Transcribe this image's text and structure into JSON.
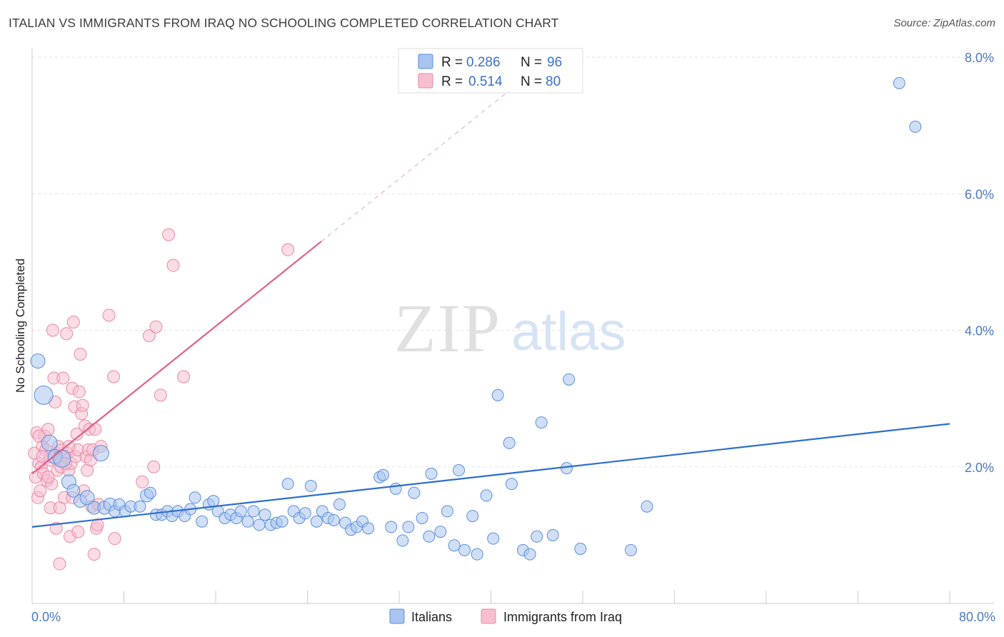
{
  "title": "ITALIAN VS IMMIGRANTS FROM IRAQ NO SCHOOLING COMPLETED CORRELATION CHART",
  "source": "Source: ZipAtlas.com",
  "watermark": {
    "zip": "ZIP",
    "atlas": "atlas"
  },
  "legend_top": [
    {
      "r_label": "R = ",
      "r_value": "0.286",
      "n_label": "N = ",
      "n_value": "96"
    },
    {
      "r_label": "R = ",
      "r_value": "0.514",
      "n_label": "N = ",
      "n_value": "80"
    }
  ],
  "colors": {
    "blue_fill": "#a9c4ef",
    "blue_stroke": "#5b8edc",
    "blue_line": "#2c6fcb",
    "pink_fill": "#f6bfd0",
    "pink_stroke": "#e889a8",
    "pink_line": "#e0608a",
    "tick_text": "#4a78c4",
    "grid": "#e3e3e3"
  },
  "chart_data": {
    "type": "scatter",
    "title": "ITALIAN VS IMMIGRANTS FROM IRAQ NO SCHOOLING COMPLETED CORRELATION CHART",
    "xlabel": "",
    "ylabel": "No Schooling Completed",
    "xlim": [
      0,
      80
    ],
    "ylim": [
      0,
      8
    ],
    "x_tick_labels": [
      "0.0%",
      "80.0%"
    ],
    "y_ticks": [
      2,
      4,
      6,
      8
    ],
    "y_tick_labels": [
      "2.0%",
      "4.0%",
      "6.0%",
      "8.0%"
    ],
    "grid": "horizontal dashed",
    "legend_position": "top-center",
    "series": [
      {
        "name": "Italians",
        "R": 0.286,
        "N": 96,
        "trend": {
          "x": [
            0,
            80
          ],
          "y": [
            1.12,
            2.63
          ]
        },
        "points": [
          [
            0.5,
            3.55,
            18
          ],
          [
            1,
            3.05,
            24
          ],
          [
            1.5,
            2.35,
            20
          ],
          [
            2.0,
            2.15,
            18
          ],
          [
            2.6,
            2.12,
            22
          ],
          [
            3.2,
            1.78,
            18
          ],
          [
            3.6,
            1.65,
            16
          ],
          [
            4.2,
            1.5,
            16
          ],
          [
            4.8,
            1.55,
            18
          ],
          [
            5.4,
            1.4,
            16
          ],
          [
            6.0,
            2.2,
            20
          ],
          [
            6.3,
            1.4,
            16
          ],
          [
            6.8,
            1.45,
            16
          ],
          [
            7.2,
            1.35,
            14
          ],
          [
            7.6,
            1.45,
            14
          ],
          [
            8.1,
            1.35,
            14
          ],
          [
            8.6,
            1.42,
            14
          ],
          [
            9.4,
            1.42,
            14
          ],
          [
            10.0,
            1.58,
            16
          ],
          [
            10.3,
            1.62,
            14
          ],
          [
            10.8,
            1.3,
            14
          ],
          [
            11.3,
            1.3,
            14
          ],
          [
            11.8,
            1.35,
            14
          ],
          [
            12.2,
            1.28,
            14
          ],
          [
            12.7,
            1.35,
            14
          ],
          [
            13.3,
            1.28,
            14
          ],
          [
            13.8,
            1.38,
            14
          ],
          [
            14.2,
            1.55,
            14
          ],
          [
            14.8,
            1.2,
            14
          ],
          [
            15.4,
            1.45,
            14
          ],
          [
            15.8,
            1.5,
            14
          ],
          [
            16.2,
            1.35,
            14
          ],
          [
            16.8,
            1.25,
            14
          ],
          [
            17.3,
            1.3,
            14
          ],
          [
            17.8,
            1.25,
            14
          ],
          [
            18.2,
            1.35,
            14
          ],
          [
            18.8,
            1.2,
            14
          ],
          [
            19.3,
            1.35,
            14
          ],
          [
            19.8,
            1.15,
            14
          ],
          [
            20.3,
            1.3,
            14
          ],
          [
            20.8,
            1.15,
            14
          ],
          [
            21.3,
            1.18,
            14
          ],
          [
            21.8,
            1.2,
            14
          ],
          [
            22.3,
            1.75,
            14
          ],
          [
            22.8,
            1.35,
            14
          ],
          [
            23.3,
            1.25,
            14
          ],
          [
            23.8,
            1.32,
            14
          ],
          [
            24.3,
            1.72,
            14
          ],
          [
            24.8,
            1.2,
            14
          ],
          [
            25.3,
            1.35,
            14
          ],
          [
            25.8,
            1.25,
            14
          ],
          [
            26.3,
            1.22,
            14
          ],
          [
            26.8,
            1.45,
            14
          ],
          [
            27.3,
            1.18,
            14
          ],
          [
            27.8,
            1.08,
            14
          ],
          [
            28.3,
            1.12,
            14
          ],
          [
            28.8,
            1.2,
            14
          ],
          [
            29.3,
            1.1,
            14
          ],
          [
            30.3,
            1.85,
            14
          ],
          [
            30.6,
            1.88,
            14
          ],
          [
            31.3,
            1.12,
            14
          ],
          [
            31.7,
            1.68,
            14
          ],
          [
            32.3,
            0.92,
            14
          ],
          [
            32.8,
            1.12,
            14
          ],
          [
            33.3,
            1.62,
            14
          ],
          [
            34.0,
            1.25,
            14
          ],
          [
            34.6,
            0.98,
            14
          ],
          [
            34.8,
            1.9,
            14
          ],
          [
            35.6,
            1.05,
            14
          ],
          [
            36.2,
            1.35,
            14
          ],
          [
            36.8,
            0.85,
            14
          ],
          [
            37.2,
            1.95,
            14
          ],
          [
            37.7,
            0.78,
            14
          ],
          [
            38.4,
            1.28,
            14
          ],
          [
            38.8,
            0.72,
            14
          ],
          [
            39.6,
            1.58,
            14
          ],
          [
            40.2,
            0.95,
            14
          ],
          [
            40.6,
            3.05,
            14
          ],
          [
            41.6,
            2.35,
            14
          ],
          [
            41.8,
            1.75,
            14
          ],
          [
            42.8,
            0.78,
            14
          ],
          [
            43.4,
            0.72,
            14
          ],
          [
            44.0,
            0.98,
            14
          ],
          [
            44.4,
            2.65,
            14
          ],
          [
            45.4,
            1.0,
            14
          ],
          [
            46.8,
            3.28,
            14
          ],
          [
            46.6,
            1.98,
            14
          ],
          [
            47.8,
            0.8,
            14
          ],
          [
            52.2,
            0.78,
            14
          ],
          [
            53.6,
            1.42,
            14
          ],
          [
            75.6,
            7.62,
            14
          ],
          [
            77.0,
            6.98,
            14
          ]
        ]
      },
      {
        "name": "Immigrants from Iraq",
        "R": 0.514,
        "N": 80,
        "trend": {
          "x": [
            0,
            25.2
          ],
          "y": [
            1.9,
            5.3
          ]
        },
        "trend_dashed": {
          "x": [
            25.2,
            43
          ],
          "y": [
            5.3,
            7.7
          ]
        },
        "points": [
          [
            0.2,
            2.2
          ],
          [
            0.3,
            1.85
          ],
          [
            0.4,
            2.5
          ],
          [
            0.5,
            1.55
          ],
          [
            0.6,
            2.05
          ],
          [
            0.7,
            1.65
          ],
          [
            0.8,
            2.0
          ],
          [
            0.9,
            2.3
          ],
          [
            1.0,
            1.9
          ],
          [
            1.1,
            2.45
          ],
          [
            1.2,
            2.25
          ],
          [
            1.3,
            1.8
          ],
          [
            1.4,
            2.55
          ],
          [
            1.5,
            2.1
          ],
          [
            1.6,
            1.4
          ],
          [
            1.7,
            1.75
          ],
          [
            1.8,
            4.0
          ],
          [
            1.9,
            3.3
          ],
          [
            2.0,
            2.95
          ],
          [
            2.1,
            2.2
          ],
          [
            2.2,
            1.95
          ],
          [
            2.3,
            2.3
          ],
          [
            2.4,
            1.4
          ],
          [
            2.5,
            2.0
          ],
          [
            2.6,
            2.25
          ],
          [
            2.7,
            3.3
          ],
          [
            2.8,
            1.55
          ],
          [
            2.9,
            2.15
          ],
          [
            3.0,
            3.95
          ],
          [
            3.1,
            2.2
          ],
          [
            3.2,
            1.95
          ],
          [
            3.3,
            0.98
          ],
          [
            3.4,
            2.05
          ],
          [
            3.5,
            3.15
          ],
          [
            3.6,
            4.12
          ],
          [
            3.7,
            2.88
          ],
          [
            3.8,
            2.15
          ],
          [
            3.9,
            2.48
          ],
          [
            4.0,
            2.25
          ],
          [
            4.1,
            3.1
          ],
          [
            4.2,
            3.65
          ],
          [
            4.3,
            2.78
          ],
          [
            4.4,
            2.9
          ],
          [
            4.5,
            1.65
          ],
          [
            4.6,
            2.6
          ],
          [
            4.7,
            2.15
          ],
          [
            4.8,
            1.95
          ],
          [
            4.9,
            2.25
          ],
          [
            5.0,
            2.55
          ],
          [
            5.1,
            2.1
          ],
          [
            5.2,
            1.42
          ],
          [
            5.3,
            2.25
          ],
          [
            5.4,
            0.72
          ],
          [
            5.5,
            2.55
          ],
          [
            5.6,
            1.1
          ],
          [
            5.7,
            1.15
          ],
          [
            6.0,
            2.3
          ],
          [
            6.7,
            4.22
          ],
          [
            7.1,
            3.32
          ],
          [
            7.2,
            0.95
          ],
          [
            9.6,
            1.78
          ],
          [
            10.2,
            3.92
          ],
          [
            10.6,
            2.0
          ],
          [
            10.8,
            4.05
          ],
          [
            11.2,
            3.05
          ],
          [
            11.9,
            5.4
          ],
          [
            12.3,
            4.95
          ],
          [
            13.2,
            3.32
          ],
          [
            22.3,
            5.18
          ],
          [
            2.4,
            0.58
          ],
          [
            3.5,
            1.55
          ],
          [
            1.6,
            2.15
          ],
          [
            2.1,
            1.1
          ],
          [
            2.9,
            2.05
          ],
          [
            0.9,
            2.15
          ],
          [
            4.0,
            1.05
          ],
          [
            5.8,
            1.45
          ],
          [
            1.4,
            1.85
          ],
          [
            0.6,
            2.45
          ],
          [
            3.2,
            2.3
          ]
        ]
      }
    ]
  },
  "bottom_legend": [
    "Italians",
    "Immigrants from Iraq"
  ]
}
